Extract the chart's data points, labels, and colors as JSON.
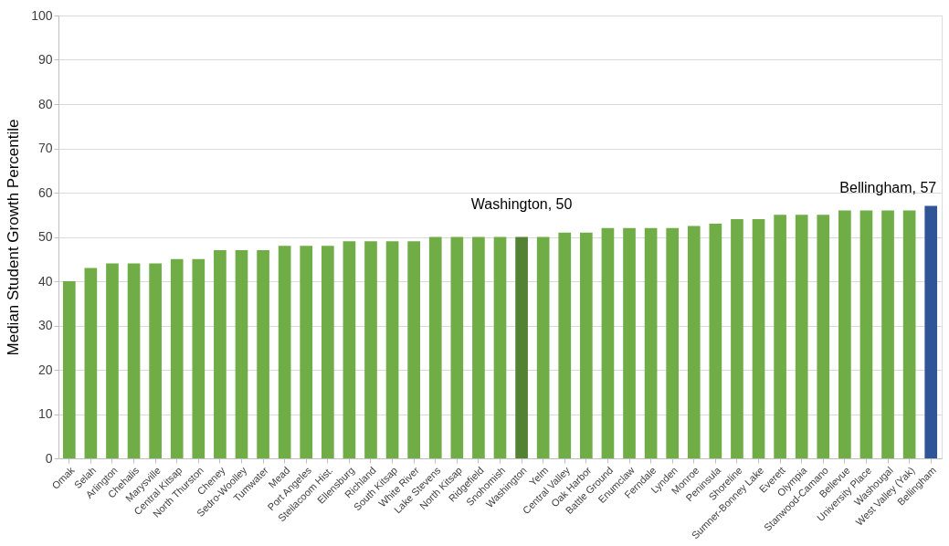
{
  "chart_data": {
    "type": "bar",
    "ylabel": "Median Student Growth Percentile",
    "categories": [
      "Omak",
      "Selah",
      "Arlington",
      "Chehalis",
      "Marysville",
      "Central Kitsap",
      "North Thurston",
      "Cheney",
      "Sedro-Woolley",
      "Tumwater",
      "Mead",
      "Port Angeles",
      "Steilacoom Hist.",
      "Ellensburg",
      "Richland",
      "South Kitsap",
      "White River",
      "Lake Stevens",
      "North Kitsap",
      "Ridgefield",
      "Snohomish",
      "Washington",
      "Yelm",
      "Central Valley",
      "Oak Harbor",
      "Battle Ground",
      "Enumclaw",
      "Ferndale",
      "Lynden",
      "Monroe",
      "Peninsula",
      "Shoreline",
      "Sumner-Bonney Lake",
      "Everett",
      "Olympia",
      "Stanwood-Camano",
      "Bellevue",
      "University Place",
      "Washougal",
      "West Valley (Yak)",
      "Bellingham"
    ],
    "values": [
      40,
      43,
      44,
      44,
      44,
      45,
      45,
      47,
      47,
      47,
      48,
      48,
      48,
      49,
      49,
      49,
      49,
      50,
      50,
      50,
      50,
      50,
      50,
      51,
      51,
      52,
      52,
      52,
      52,
      52.5,
      53,
      54,
      54,
      55,
      55,
      55,
      56,
      56,
      56,
      56,
      57
    ],
    "colors": [
      "#70ad47",
      "#70ad47",
      "#70ad47",
      "#70ad47",
      "#70ad47",
      "#70ad47",
      "#70ad47",
      "#70ad47",
      "#70ad47",
      "#70ad47",
      "#70ad47",
      "#70ad47",
      "#70ad47",
      "#70ad47",
      "#70ad47",
      "#70ad47",
      "#70ad47",
      "#70ad47",
      "#70ad47",
      "#70ad47",
      "#70ad47",
      "#548235",
      "#70ad47",
      "#70ad47",
      "#70ad47",
      "#70ad47",
      "#70ad47",
      "#70ad47",
      "#70ad47",
      "#70ad47",
      "#70ad47",
      "#70ad47",
      "#70ad47",
      "#70ad47",
      "#70ad47",
      "#70ad47",
      "#70ad47",
      "#70ad47",
      "#70ad47",
      "#70ad47",
      "#2f5597"
    ],
    "ylim": [
      0,
      100
    ],
    "yticks": [
      0,
      10,
      20,
      30,
      40,
      50,
      60,
      70,
      80,
      90,
      100
    ],
    "grid": "y",
    "annotations": [
      {
        "text": "Washington, 50",
        "x": "Washington",
        "y": 50
      },
      {
        "text": "Bellingham, 57",
        "x": "Bellingham",
        "y": 57
      }
    ]
  }
}
